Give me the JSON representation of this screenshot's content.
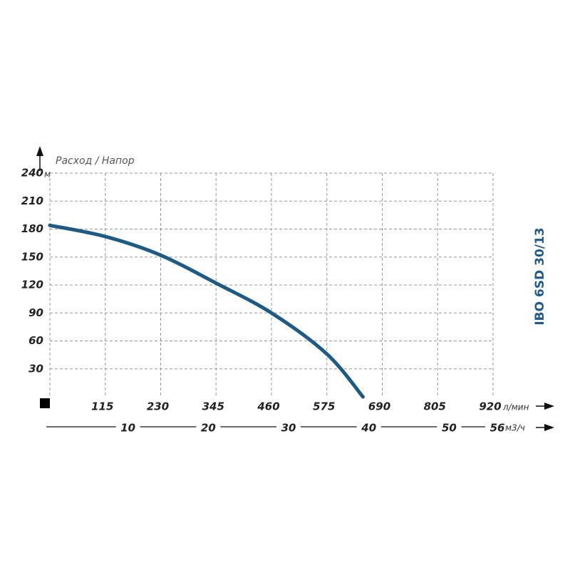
{
  "chart_data": {
    "type": "line",
    "y_axis_label": "Расход / Напор",
    "y_unit": "м",
    "x_unit": "л/мин",
    "x2_unit": "м3/ч",
    "side_label": "IBO 6SD 30/13",
    "x": [
      0,
      115,
      230,
      345,
      460,
      575,
      650
    ],
    "values": [
      184,
      172,
      152,
      122,
      90,
      46,
      0
    ],
    "color": "#1d5b84",
    "xlim": [
      0,
      920
    ],
    "xticks": [
      115,
      230,
      345,
      460,
      575,
      690,
      805,
      920
    ],
    "ylim": [
      0,
      240
    ],
    "yticks": [
      30,
      60,
      90,
      120,
      150,
      180,
      210,
      240
    ],
    "x2lim": [
      0,
      55.2
    ],
    "x2ticks": [
      10,
      20,
      30,
      40,
      50,
      56
    ],
    "grid": true
  }
}
